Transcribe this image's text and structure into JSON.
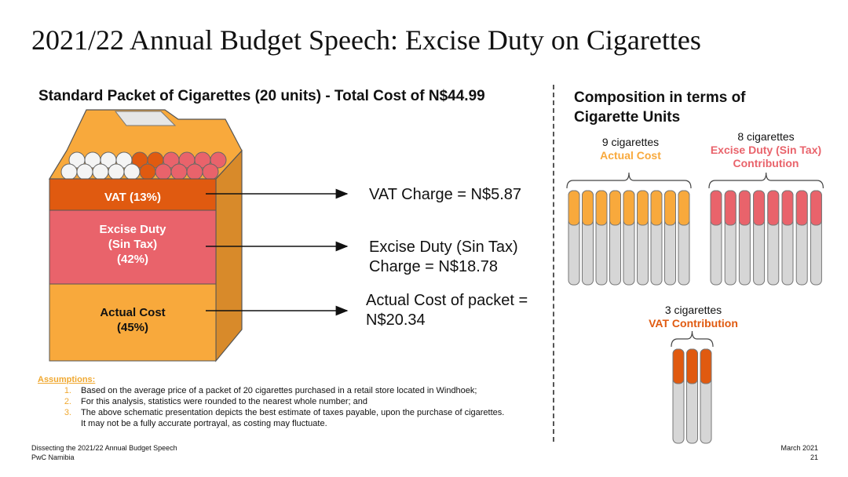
{
  "title": "2021/22 Annual Budget Speech: Excise Duty on Cigarettes",
  "left_heading": "Standard Packet of Cigarettes (20 units) - Total Cost of N$44.99",
  "right_heading": [
    "Composition in terms of",
    "Cigarette Units"
  ],
  "packet_segments": [
    {
      "label": [
        "VAT (13%)"
      ],
      "color": "#e05a10",
      "share": 13
    },
    {
      "label": [
        "Excise Duty",
        "(Sin Tax)",
        "(42%)"
      ],
      "color": "#e9636b",
      "share": 42
    },
    {
      "label": [
        "Actual Cost",
        "(45%)"
      ],
      "color": "#f8a93c",
      "share": 45
    }
  ],
  "charges": [
    [
      "VAT Charge = N$5.87"
    ],
    [
      "Excise Duty (Sin Tax)",
      "Charge = N$18.78"
    ],
    [
      "Actual Cost of packet =",
      "N$20.34"
    ]
  ],
  "groups": [
    {
      "count_label": "9 cigarettes",
      "name": [
        "Actual Cost"
      ],
      "count": 9,
      "color": "#f8a93c"
    },
    {
      "count_label": "8 cigarettes",
      "name": [
        "Excise Duty (Sin Tax)",
        "Contribution"
      ],
      "count": 8,
      "color": "#e9636b"
    },
    {
      "count_label": "3 cigarettes",
      "name": [
        "VAT Contribution"
      ],
      "count": 3,
      "color": "#e05a10"
    }
  ],
  "assumptions": {
    "heading": "Assumptions:",
    "items": [
      {
        "num": "1.",
        "lines": [
          "Based on the average price of a packet of 20 cigarettes purchased in a retail store located in Windhoek;"
        ]
      },
      {
        "num": "2.",
        "lines": [
          "For this analysis, statistics were rounded to the nearest whole number; and"
        ]
      },
      {
        "num": "3.",
        "lines": [
          "The above schematic presentation depicts the best estimate of taxes payable, upon the purchase of cigarettes.",
          "It may not be a fully accurate portrayal, as costing may fluctuate."
        ]
      }
    ]
  },
  "footer": {
    "left": [
      "Dissecting the 2021/22 Annual Budget Speech",
      "PwC Namibia"
    ],
    "date": "March 2021",
    "page": "21"
  }
}
